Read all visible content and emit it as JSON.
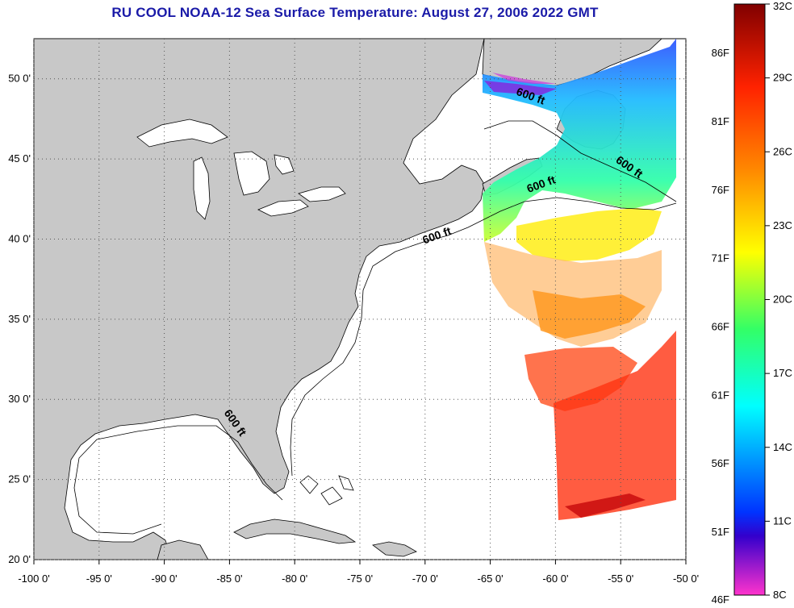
{
  "title": "RU COOL  NOAA-12  Sea Surface Temperature:  August 27, 2006 2022 GMT",
  "colors": {
    "land": "#c8c8c8",
    "ocean": "#ffffff",
    "title": "#1a1aa8",
    "gridline": "#555555"
  },
  "map": {
    "lon_range": [
      -100,
      -50
    ],
    "lat_range": [
      20,
      52.5
    ],
    "lon_ticks": [
      {
        "value": -100,
        "label": "-100 0'"
      },
      {
        "value": -95,
        "label": "-95 0'"
      },
      {
        "value": -90,
        "label": "-90 0'"
      },
      {
        "value": -85,
        "label": "-85 0'"
      },
      {
        "value": -80,
        "label": "-80 0'"
      },
      {
        "value": -75,
        "label": "-75 0'"
      },
      {
        "value": -70,
        "label": "-70 0'"
      },
      {
        "value": -65,
        "label": "-65 0'"
      },
      {
        "value": -60,
        "label": "-60 0'"
      },
      {
        "value": -55,
        "label": "-55 0'"
      },
      {
        "value": -50,
        "label": "-50 0'"
      }
    ],
    "lat_ticks": [
      {
        "value": 50,
        "label": "50 0'"
      },
      {
        "value": 45,
        "label": "45 0'"
      },
      {
        "value": 40,
        "label": "40 0'"
      },
      {
        "value": 35,
        "label": "35 0'"
      },
      {
        "value": 30,
        "label": "30 0'"
      },
      {
        "value": 25,
        "label": "25 0'"
      },
      {
        "value": 20,
        "label": "20 0'"
      }
    ],
    "isobath_labels": [
      {
        "text": "600 ft",
        "lon": -62.0,
        "lat": 48.7,
        "rotate": 20
      },
      {
        "text": "600 ft",
        "lon": -54.5,
        "lat": 44.3,
        "rotate": 35
      },
      {
        "text": "600 ft",
        "lon": -61.0,
        "lat": 43.2,
        "rotate": -20
      },
      {
        "text": "600 ft",
        "lon": -69.0,
        "lat": 40.0,
        "rotate": -20
      },
      {
        "text": "600 ft",
        "lon": -84.8,
        "lat": 28.4,
        "rotate": 55
      }
    ]
  },
  "colorbar": {
    "gradient_stops": [
      "#ff33cc",
      "#3300cc",
      "#0033ff",
      "#00ffff",
      "#33ff66",
      "#ffff00",
      "#ff8800",
      "#ff2200",
      "#800000"
    ],
    "celsius": [
      {
        "value": 32,
        "label": "32C"
      },
      {
        "value": 29,
        "label": "29C"
      },
      {
        "value": 26,
        "label": "26C"
      },
      {
        "value": 23,
        "label": "23C"
      },
      {
        "value": 20,
        "label": "20C"
      },
      {
        "value": 17,
        "label": "17C"
      },
      {
        "value": 14,
        "label": "14C"
      },
      {
        "value": 11,
        "label": "11C"
      },
      {
        "value": 8,
        "label": "8C"
      }
    ],
    "fahrenheit": [
      {
        "value": 86,
        "label": "86F"
      },
      {
        "value": 81,
        "label": "81F"
      },
      {
        "value": 76,
        "label": "76F"
      },
      {
        "value": 71,
        "label": "71F"
      },
      {
        "value": 66,
        "label": "66F"
      },
      {
        "value": 61,
        "label": "61F"
      },
      {
        "value": 56,
        "label": "56F"
      },
      {
        "value": 51,
        "label": "51F"
      },
      {
        "value": 46,
        "label": "46F"
      }
    ]
  }
}
